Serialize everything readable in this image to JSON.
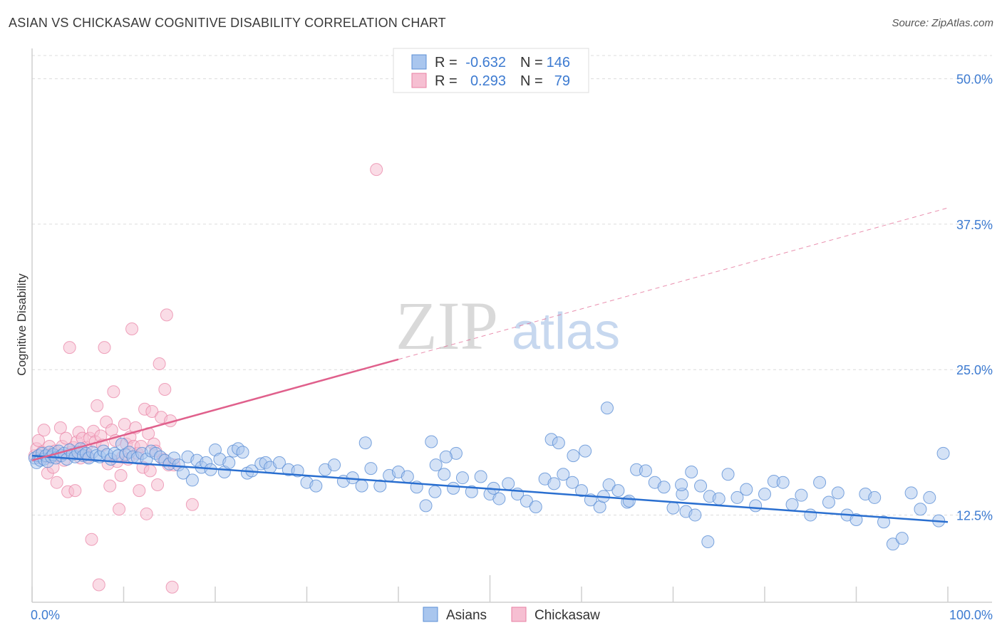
{
  "title": "ASIAN VS CHICKASAW COGNITIVE DISABILITY CORRELATION CHART",
  "source": "Source: ZipAtlas.com",
  "watermark": {
    "zip": "ZIP",
    "atlas": "atlas"
  },
  "colors": {
    "asian": "#5b8fd6",
    "asian_fill": "#a9c6ee",
    "chickasaw": "#e87fa3",
    "chickasaw_fill": "#f6bfd2",
    "asian_line": "#2a6fd0",
    "chickasaw_line": "#e0608c",
    "axis_label": "#3d7bd1",
    "grid": "#dcdcdc"
  },
  "legend": {
    "rows": [
      {
        "r_label": "R =",
        "r_value": "-0.632",
        "n_label": "N =",
        "n_value": "146"
      },
      {
        "r_label": "R =",
        "r_value": "0.293",
        "n_label": "N =",
        "n_value": "79"
      }
    ]
  },
  "bottom_legend": [
    "Asians",
    "Chickasaw"
  ],
  "chart_data": {
    "type": "scatter",
    "ylabel": "Cognitive Disability",
    "xlabel": "",
    "xlim": [
      0,
      100
    ],
    "ylim": [
      5,
      52
    ],
    "y_ticks": [
      12.5,
      25.0,
      37.5,
      50.0
    ],
    "y_tick_labels": [
      "12.5%",
      "25.0%",
      "37.5%",
      "50.0%"
    ],
    "x_tick_labels": [
      "0.0%",
      "100.0%"
    ],
    "grid": true,
    "legend_position": "top-center",
    "series": [
      {
        "name": "Asians",
        "trend": {
          "x": [
            0,
            100
          ],
          "y": [
            17.6,
            11.9
          ],
          "style": "solid"
        },
        "points": [
          [
            0.3,
            17.4
          ],
          [
            0.5,
            17.0
          ],
          [
            0.7,
            17.6
          ],
          [
            0.9,
            17.2
          ],
          [
            1.1,
            17.8
          ],
          [
            1.3,
            17.3
          ],
          [
            1.5,
            17.6
          ],
          [
            1.7,
            17.1
          ],
          [
            1.9,
            17.9
          ],
          [
            2.1,
            17.5
          ],
          [
            2.3,
            17.7
          ],
          [
            2.6,
            17.4
          ],
          [
            2.9,
            18.0
          ],
          [
            3.2,
            17.6
          ],
          [
            3.5,
            17.8
          ],
          [
            3.8,
            17.3
          ],
          [
            4.1,
            18.1
          ],
          [
            4.4,
            17.7
          ],
          [
            4.7,
            17.5
          ],
          [
            5.0,
            17.9
          ],
          [
            5.3,
            18.2
          ],
          [
            5.6,
            17.6
          ],
          [
            5.9,
            17.8
          ],
          [
            6.2,
            17.4
          ],
          [
            6.6,
            17.9
          ],
          [
            7.0,
            17.6
          ],
          [
            7.4,
            17.5
          ],
          [
            7.8,
            18.0
          ],
          [
            8.2,
            17.7
          ],
          [
            8.6,
            17.3
          ],
          [
            9.0,
            17.8
          ],
          [
            9.4,
            17.6
          ],
          [
            9.8,
            18.6
          ],
          [
            10.2,
            17.7
          ],
          [
            10.6,
            17.9
          ],
          [
            11.0,
            17.5
          ],
          [
            11.5,
            17.4
          ],
          [
            12.0,
            17.8
          ],
          [
            12.5,
            17.3
          ],
          [
            13.0,
            18.0
          ],
          [
            13.5,
            17.8
          ],
          [
            14.0,
            17.5
          ],
          [
            14.5,
            17.2
          ],
          [
            15.0,
            16.9
          ],
          [
            15.5,
            17.4
          ],
          [
            16.0,
            16.8
          ],
          [
            16.5,
            16.1
          ],
          [
            17.0,
            17.5
          ],
          [
            17.5,
            15.5
          ],
          [
            18.0,
            17.2
          ],
          [
            18.5,
            16.6
          ],
          [
            19.0,
            17.0
          ],
          [
            19.5,
            16.4
          ],
          [
            20.0,
            18.1
          ],
          [
            20.5,
            17.3
          ],
          [
            21.0,
            16.2
          ],
          [
            21.5,
            17.0
          ],
          [
            22.0,
            18.0
          ],
          [
            22.5,
            18.2
          ],
          [
            23.0,
            17.9
          ],
          [
            23.5,
            16.1
          ],
          [
            24.0,
            16.3
          ],
          [
            25.0,
            16.9
          ],
          [
            25.5,
            17.0
          ],
          [
            26.0,
            16.6
          ],
          [
            27.0,
            17.0
          ],
          [
            28.0,
            16.4
          ],
          [
            29.0,
            16.3
          ],
          [
            30.0,
            15.3
          ],
          [
            31.0,
            15.0
          ],
          [
            32.0,
            16.4
          ],
          [
            33.0,
            16.8
          ],
          [
            34.0,
            15.4
          ],
          [
            35.0,
            15.7
          ],
          [
            36.0,
            15.0
          ],
          [
            37.0,
            16.5
          ],
          [
            38.0,
            15.0
          ],
          [
            39.0,
            15.9
          ],
          [
            40.0,
            16.2
          ],
          [
            41.0,
            15.8
          ],
          [
            42.0,
            14.9
          ],
          [
            43.0,
            13.3
          ],
          [
            44.0,
            14.5
          ],
          [
            45.0,
            16.0
          ],
          [
            46.0,
            14.8
          ],
          [
            47.0,
            15.7
          ],
          [
            48.0,
            14.5
          ],
          [
            49.0,
            15.8
          ],
          [
            50.0,
            14.3
          ],
          [
            51.0,
            13.9
          ],
          [
            52.0,
            15.2
          ],
          [
            53.0,
            14.3
          ],
          [
            54.0,
            13.7
          ],
          [
            55.0,
            13.2
          ],
          [
            56.0,
            15.6
          ],
          [
            57.0,
            15.2
          ],
          [
            58.0,
            16.0
          ],
          [
            59.0,
            15.3
          ],
          [
            60.0,
            14.6
          ],
          [
            61.0,
            13.8
          ],
          [
            62.0,
            13.2
          ],
          [
            63.0,
            15.1
          ],
          [
            64.0,
            14.6
          ],
          [
            65.0,
            13.6
          ],
          [
            66.0,
            16.4
          ],
          [
            67.0,
            16.3
          ],
          [
            68.0,
            15.3
          ],
          [
            69.0,
            14.9
          ],
          [
            70.0,
            13.1
          ],
          [
            71.0,
            14.3
          ],
          [
            72.0,
            16.2
          ],
          [
            73.0,
            15.0
          ],
          [
            74.0,
            14.1
          ],
          [
            75.0,
            13.9
          ],
          [
            76.0,
            16.0
          ],
          [
            77.0,
            14.0
          ],
          [
            78.0,
            14.7
          ],
          [
            79.0,
            13.3
          ],
          [
            80.0,
            14.3
          ],
          [
            81.0,
            15.4
          ],
          [
            82.0,
            15.3
          ],
          [
            83.0,
            13.4
          ],
          [
            84.0,
            14.2
          ],
          [
            85.0,
            12.5
          ],
          [
            86.0,
            15.3
          ],
          [
            87.0,
            13.6
          ],
          [
            88.0,
            14.4
          ],
          [
            89.0,
            12.5
          ],
          [
            90.0,
            12.1
          ],
          [
            91.0,
            14.3
          ],
          [
            92.0,
            14.0
          ],
          [
            93.0,
            11.9
          ],
          [
            94.0,
            10.0
          ],
          [
            95.0,
            10.5
          ],
          [
            96.0,
            14.4
          ],
          [
            97.0,
            13.0
          ],
          [
            98.0,
            14.0
          ],
          [
            99.0,
            12.0
          ],
          [
            99.5,
            17.8
          ],
          [
            36.4,
            18.7
          ],
          [
            46.3,
            17.8
          ],
          [
            44.1,
            16.8
          ],
          [
            50.4,
            14.8
          ],
          [
            59.1,
            17.6
          ],
          [
            60.4,
            18.0
          ],
          [
            62.4,
            14.1
          ],
          [
            65.2,
            13.7
          ],
          [
            73.8,
            10.2
          ],
          [
            71.4,
            12.8
          ],
          [
            72.4,
            12.5
          ],
          [
            56.7,
            19.0
          ],
          [
            57.5,
            18.7
          ],
          [
            70.9,
            15.1
          ],
          [
            43.6,
            18.8
          ],
          [
            45.2,
            17.5
          ],
          [
            62.8,
            21.7
          ]
        ]
      },
      {
        "name": "Chickasaw",
        "trend": {
          "x": [
            0,
            100
          ],
          "y": [
            17.2,
            38.9
          ],
          "style": "solid-to-dashed",
          "solid_until": 40
        },
        "points": [
          [
            0.3,
            17.6
          ],
          [
            0.5,
            18.2
          ],
          [
            0.7,
            18.9
          ],
          [
            0.9,
            17.4
          ],
          [
            1.1,
            17.9
          ],
          [
            1.3,
            19.8
          ],
          [
            1.5,
            17.5
          ],
          [
            1.7,
            16.1
          ],
          [
            1.9,
            18.4
          ],
          [
            2.1,
            17.7
          ],
          [
            2.3,
            16.6
          ],
          [
            2.5,
            18.0
          ],
          [
            2.7,
            15.3
          ],
          [
            2.9,
            17.6
          ],
          [
            3.1,
            20.0
          ],
          [
            3.3,
            18.4
          ],
          [
            3.5,
            17.2
          ],
          [
            3.7,
            19.1
          ],
          [
            3.9,
            14.5
          ],
          [
            4.1,
            26.9
          ],
          [
            4.3,
            17.9
          ],
          [
            4.5,
            18.3
          ],
          [
            4.7,
            14.6
          ],
          [
            4.9,
            18.8
          ],
          [
            5.1,
            19.6
          ],
          [
            5.3,
            17.4
          ],
          [
            5.5,
            19.1
          ],
          [
            5.7,
            17.9
          ],
          [
            5.9,
            18.3
          ],
          [
            6.1,
            17.5
          ],
          [
            6.3,
            19.1
          ],
          [
            6.5,
            10.4
          ],
          [
            6.7,
            19.7
          ],
          [
            6.9,
            18.8
          ],
          [
            7.1,
            21.9
          ],
          [
            7.3,
            6.5
          ],
          [
            7.5,
            19.3
          ],
          [
            7.7,
            18.5
          ],
          [
            7.9,
            26.9
          ],
          [
            8.1,
            20.5
          ],
          [
            8.3,
            16.9
          ],
          [
            8.5,
            15.0
          ],
          [
            8.7,
            19.8
          ],
          [
            8.9,
            23.1
          ],
          [
            9.1,
            18.9
          ],
          [
            9.3,
            17.1
          ],
          [
            9.5,
            13.0
          ],
          [
            9.7,
            15.9
          ],
          [
            9.9,
            17.5
          ],
          [
            10.1,
            20.3
          ],
          [
            10.3,
            18.6
          ],
          [
            10.5,
            17.3
          ],
          [
            10.7,
            19.2
          ],
          [
            10.9,
            28.5
          ],
          [
            11.1,
            18.4
          ],
          [
            11.3,
            20.0
          ],
          [
            11.5,
            17.8
          ],
          [
            11.7,
            14.6
          ],
          [
            11.9,
            18.4
          ],
          [
            12.1,
            16.6
          ],
          [
            12.3,
            21.6
          ],
          [
            12.5,
            12.6
          ],
          [
            12.7,
            19.5
          ],
          [
            12.9,
            16.3
          ],
          [
            13.1,
            21.4
          ],
          [
            13.3,
            18.6
          ],
          [
            13.5,
            18.0
          ],
          [
            13.7,
            15.1
          ],
          [
            13.9,
            25.5
          ],
          [
            14.1,
            20.9
          ],
          [
            14.3,
            17.3
          ],
          [
            14.5,
            23.3
          ],
          [
            14.7,
            29.7
          ],
          [
            14.9,
            16.8
          ],
          [
            15.1,
            20.6
          ],
          [
            15.3,
            6.3
          ],
          [
            15.5,
            16.8
          ],
          [
            37.6,
            42.2
          ],
          [
            17.5,
            13.4
          ]
        ]
      }
    ]
  }
}
